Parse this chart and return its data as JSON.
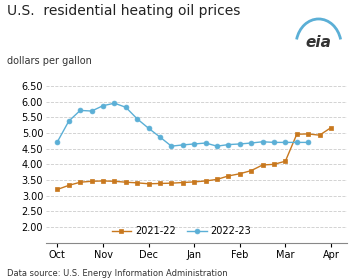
{
  "title": "U.S.  residential heating oil prices",
  "subtitle": "dollars per gallon",
  "datasource": "Data source: U.S. Energy Information Administration",
  "ylim": [
    1.5,
    6.75
  ],
  "yticks": [
    1.5,
    2.0,
    2.5,
    3.0,
    3.5,
    4.0,
    4.5,
    5.0,
    5.5,
    6.0,
    6.5
  ],
  "ytick_labels": [
    "",
    "2.00",
    "2.50",
    "3.00",
    "3.50",
    "4.00",
    "4.50",
    "5.00",
    "5.50",
    "6.00",
    "6.50"
  ],
  "xtick_labels": [
    "Oct",
    "Nov",
    "Dec",
    "Jan",
    "Feb",
    "Mar",
    "Apr"
  ],
  "series_2021_22": {
    "label": "2021-22",
    "color": "#c8781e",
    "marker": "s",
    "markersize": 3.5,
    "x": [
      0,
      0.5,
      1,
      1.5,
      2,
      2.5,
      3,
      3.5,
      4,
      4.5,
      5,
      5.5,
      6,
      6.5,
      7,
      7.5,
      8,
      8.5,
      9,
      9.5,
      10,
      10.5,
      11,
      11.5,
      12
    ],
    "y": [
      3.2,
      3.33,
      3.43,
      3.46,
      3.47,
      3.46,
      3.43,
      3.41,
      3.38,
      3.39,
      3.4,
      3.42,
      3.44,
      3.47,
      3.52,
      3.63,
      3.7,
      3.8,
      3.98,
      4.0,
      4.1,
      4.96,
      4.97,
      4.93,
      5.17
    ]
  },
  "series_2022_23": {
    "label": "2022-23",
    "color": "#5bafd6",
    "marker": "o",
    "markersize": 3.5,
    "x": [
      0,
      0.5,
      1,
      1.5,
      2,
      2.5,
      3,
      3.5,
      4,
      4.5,
      5,
      5.5,
      6,
      6.5,
      7,
      7.5,
      8,
      8.5,
      9,
      9.5,
      10,
      10.5,
      11
    ],
    "y": [
      4.72,
      5.38,
      5.72,
      5.7,
      5.87,
      5.95,
      5.82,
      5.45,
      5.15,
      4.87,
      4.58,
      4.62,
      4.65,
      4.68,
      4.58,
      4.63,
      4.65,
      4.68,
      4.72,
      4.7,
      4.7,
      4.7,
      4.7
    ]
  },
  "grid_color": "#cccccc",
  "eia_color": "#5bafd6",
  "title_fontsize": 10,
  "subtitle_fontsize": 7,
  "tick_fontsize": 7,
  "datasource_fontsize": 6
}
